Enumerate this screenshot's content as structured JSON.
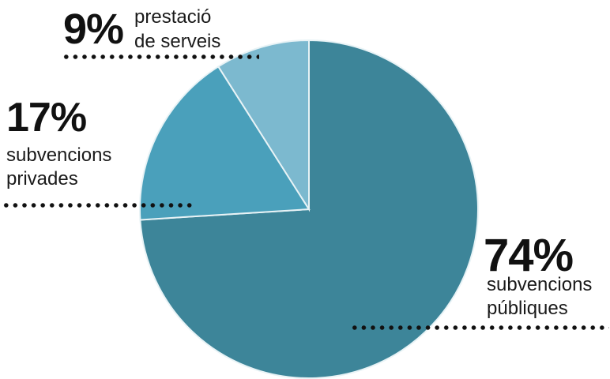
{
  "chart_data": {
    "type": "pie",
    "slices": [
      {
        "value": 74,
        "label": "74%",
        "text": [
          "subvencions",
          "públiques"
        ],
        "color": "#3d8599"
      },
      {
        "value": 17,
        "label": "17%",
        "text": [
          "subvencions",
          "privades"
        ],
        "color": "#4aa0bb"
      },
      {
        "value": 9,
        "label": "9%",
        "text": [
          "prestació",
          "de serveis"
        ],
        "color": "#7cb9cf"
      }
    ],
    "start_direction": "top",
    "order": "clockwise",
    "legend": "none"
  }
}
